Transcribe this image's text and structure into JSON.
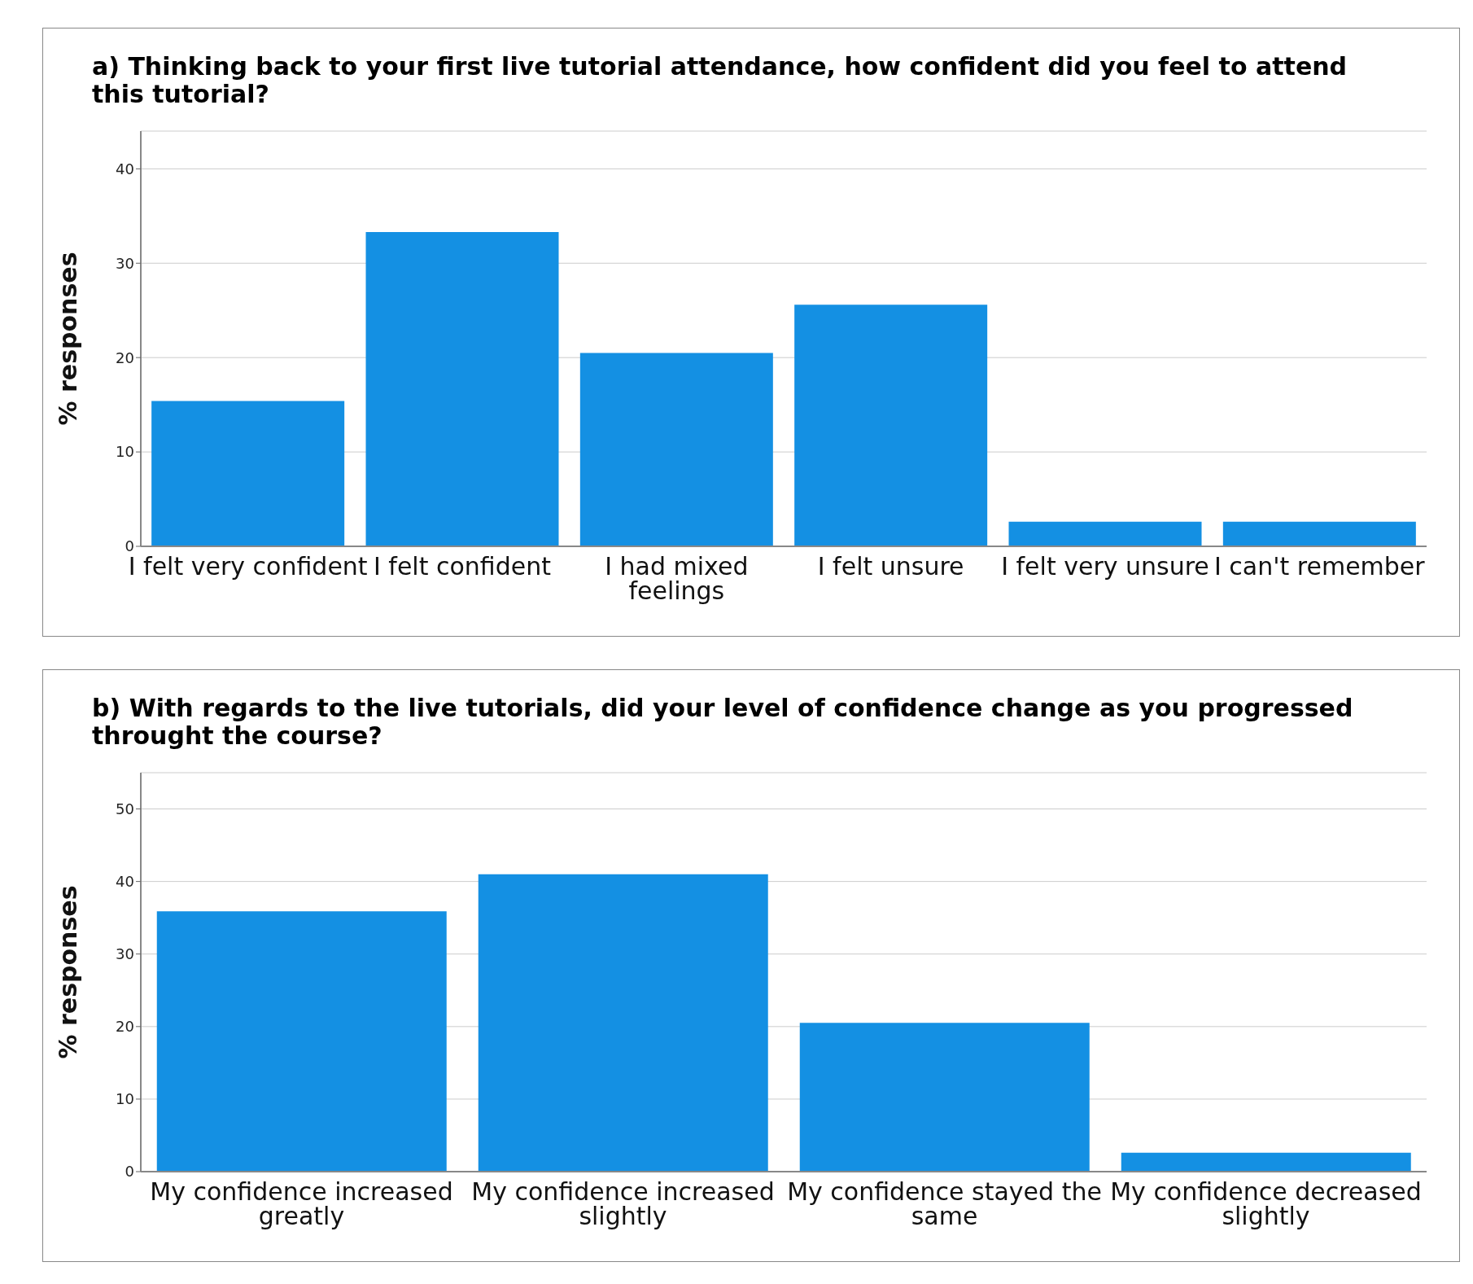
{
  "chart_data": [
    {
      "type": "bar",
      "title": "a) Thinking back to your first live tutorial attendance, how confident did you feel to attend this tutorial?",
      "ylabel": "% responses",
      "categories": [
        "I felt very confident",
        "I felt confident",
        "I had mixed feelings",
        "I felt unsure",
        "I felt very unsure",
        "I can't remember"
      ],
      "values": [
        15.4,
        33.3,
        20.5,
        25.6,
        2.6,
        2.6
      ],
      "color": "#1490e3",
      "ylim": [
        0,
        44
      ],
      "yticks": [
        0,
        10,
        20,
        30,
        40
      ],
      "grid": "y"
    },
    {
      "type": "bar",
      "title": "b) With regards to the live tutorials, did your level of confidence change as you progressed throught the course?",
      "ylabel": "% responses",
      "categories": [
        "My confidence increased greatly",
        "My confidence increased slightly",
        "My confidence stayed the same",
        "My confidence decreased slightly"
      ],
      "values": [
        35.9,
        41.0,
        20.5,
        2.6
      ],
      "color": "#1490e3",
      "ylim": [
        0,
        55
      ],
      "yticks": [
        0,
        10,
        20,
        30,
        40,
        50
      ],
      "grid": "y"
    }
  ]
}
